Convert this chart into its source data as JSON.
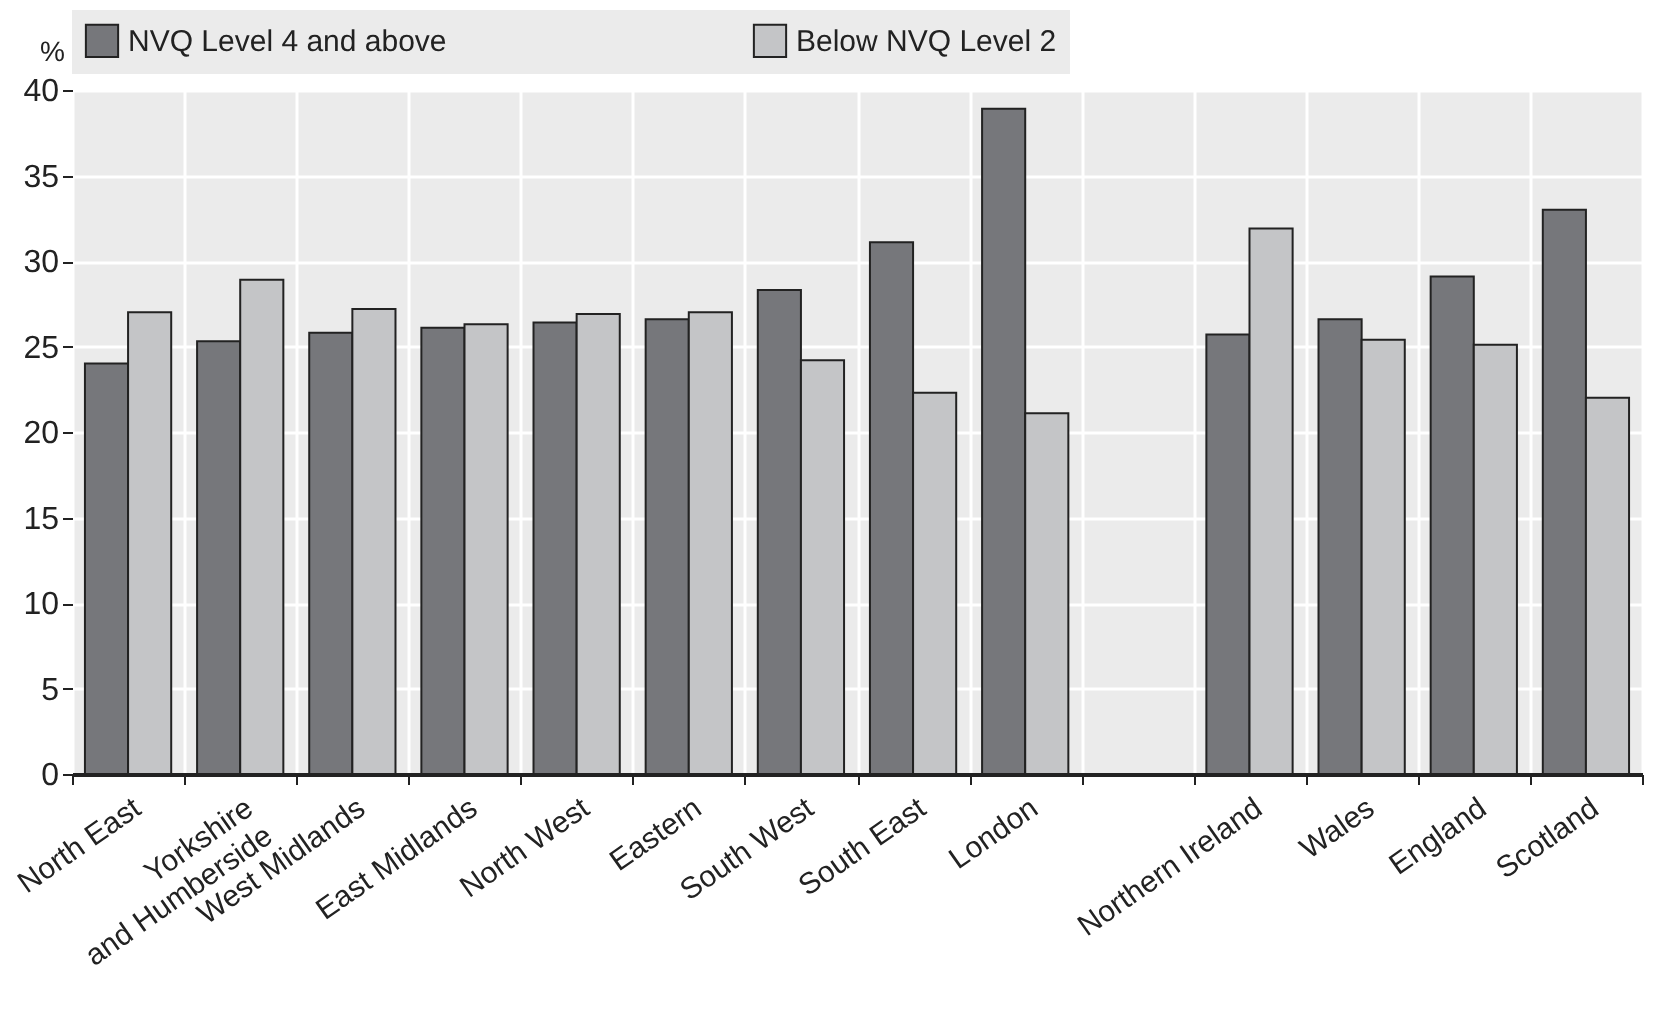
{
  "chart_data": {
    "type": "bar",
    "ylabel": "%",
    "categories": [
      "North East",
      "Yorkshire\nand Humberside",
      "West Midlands",
      "East Midlands",
      "North West",
      "Eastern",
      "South West",
      "South East",
      "London",
      null,
      "Northern Ireland",
      "Wales",
      "England",
      "Scotland"
    ],
    "series": [
      {
        "name": "NVQ Level 4 and above",
        "color": "#76777b",
        "values": [
          24.0,
          25.3,
          25.8,
          26.1,
          26.4,
          26.6,
          28.3,
          31.1,
          38.9,
          null,
          25.7,
          26.6,
          29.1,
          33.0
        ]
      },
      {
        "name": "Below NVQ Level 2",
        "color": "#c4c5c7",
        "values": [
          27.0,
          28.9,
          27.2,
          26.3,
          26.9,
          27.0,
          24.2,
          22.3,
          21.1,
          null,
          31.9,
          25.4,
          25.1,
          22.0
        ]
      }
    ],
    "ylim": [
      0,
      40
    ],
    "yticks": [
      0,
      5,
      10,
      15,
      20,
      25,
      30,
      35,
      40
    ],
    "grid": true,
    "legend": "top"
  }
}
